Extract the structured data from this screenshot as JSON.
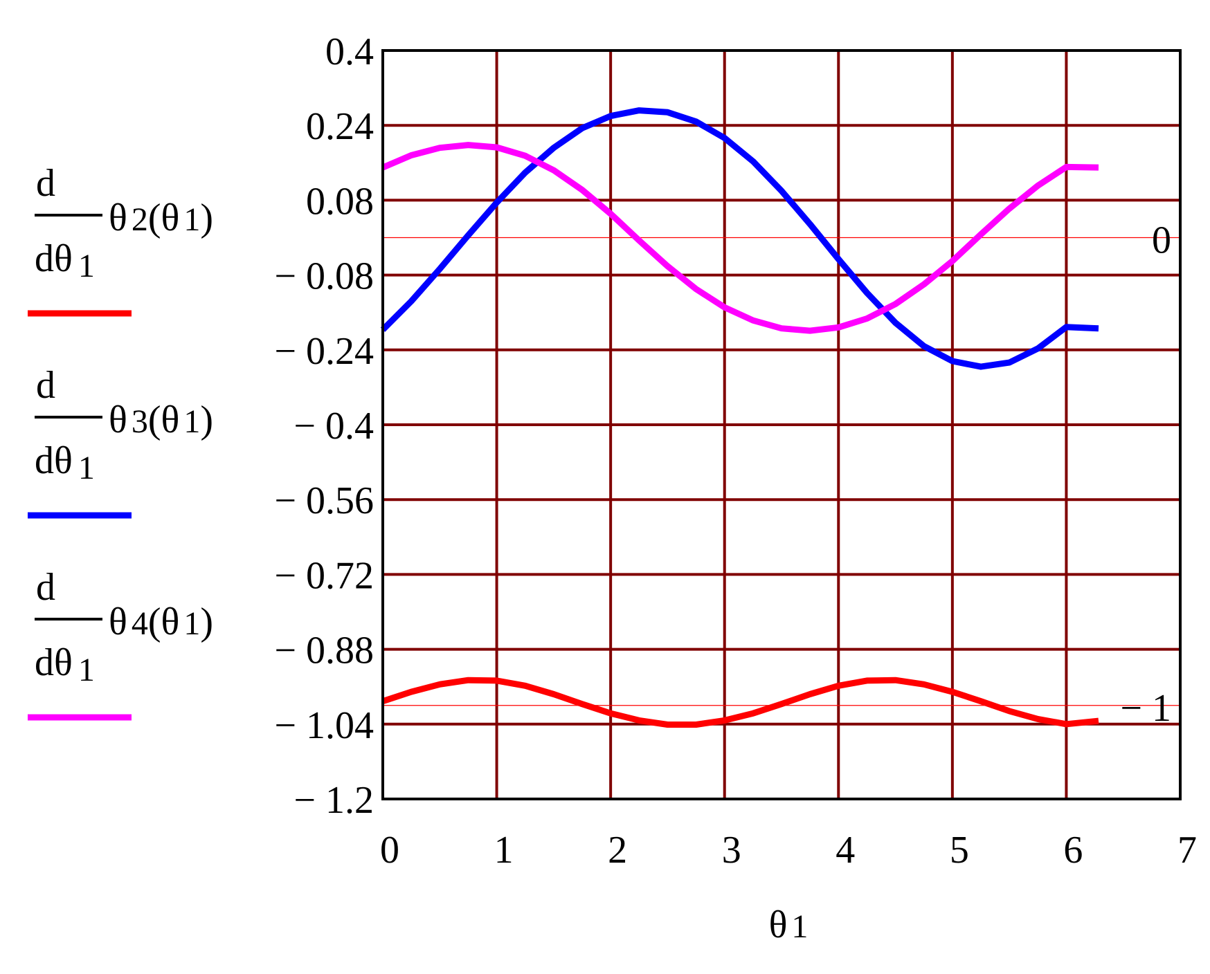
{
  "chart_data": {
    "type": "line",
    "xlabel": {
      "symbol": "θ",
      "sub": "1"
    },
    "xlim": [
      0,
      7
    ],
    "ylim": [
      -1.2,
      0.4
    ],
    "xticks": [
      "0",
      "1",
      "2",
      "3",
      "4",
      "5",
      "6",
      "7"
    ],
    "yticks": [
      "0.4",
      "0.24",
      "0.08",
      "− 0.08",
      "− 0.24",
      "− 0.4",
      "− 0.56",
      "− 0.72",
      "− 0.88",
      "− 1.04",
      "− 1.2"
    ],
    "grid": true,
    "marker_lines": [
      {
        "y": 0,
        "label": "0"
      },
      {
        "y": -1,
        "label": "− 1"
      }
    ],
    "legend": {
      "placement": "left",
      "entries": [
        {
          "num": "d",
          "den": "dθ",
          "den_sub": "1",
          "func": "θ",
          "func_sub": "2",
          "arg": "(θ",
          "arg_sub": "1",
          "close": ")",
          "color": "#ff0000"
        },
        {
          "num": "d",
          "den": "dθ",
          "den_sub": "1",
          "func": "θ",
          "func_sub": "3",
          "arg": "(θ",
          "arg_sub": "1",
          "close": ")",
          "color": "#0000ff"
        },
        {
          "num": "d",
          "den": "dθ",
          "den_sub": "1",
          "func": "θ",
          "func_sub": "4",
          "arg": "(θ",
          "arg_sub": "1",
          "close": ")",
          "color": "#ff00ff"
        }
      ]
    },
    "x": [
      0,
      0.25,
      0.5,
      0.75,
      1.0,
      1.25,
      1.5,
      1.75,
      2.0,
      2.25,
      2.5,
      2.75,
      3.0,
      3.25,
      3.5,
      3.75,
      4.0,
      4.25,
      4.5,
      4.75,
      5.0,
      5.25,
      5.5,
      5.75,
      6.0,
      6.283
    ],
    "series": [
      {
        "color": "#ff0000",
        "values": [
          -0.991,
          -0.971,
          -0.955,
          -0.946,
          -0.947,
          -0.958,
          -0.976,
          -0.997,
          -1.017,
          -1.032,
          -1.041,
          -1.041,
          -1.032,
          -1.017,
          -0.997,
          -0.976,
          -0.958,
          -0.947,
          -0.946,
          -0.955,
          -0.971,
          -0.991,
          -1.012,
          -1.029,
          -1.04,
          -1.033
        ]
      },
      {
        "color": "#0000ff",
        "values": [
          -0.197,
          -0.136,
          -0.067,
          0.005,
          0.075,
          0.139,
          0.192,
          0.234,
          0.26,
          0.272,
          0.268,
          0.248,
          0.213,
          0.163,
          0.1,
          0.029,
          -0.046,
          -0.118,
          -0.182,
          -0.232,
          -0.264,
          -0.276,
          -0.267,
          -0.237,
          -0.191,
          -0.194
        ]
      },
      {
        "color": "#ff00ff",
        "values": [
          0.15,
          0.176,
          0.192,
          0.198,
          0.193,
          0.175,
          0.144,
          0.102,
          0.051,
          -0.006,
          -0.061,
          -0.11,
          -0.149,
          -0.177,
          -0.194,
          -0.199,
          -0.192,
          -0.173,
          -0.142,
          -0.1,
          -0.05,
          0.007,
          0.062,
          0.111,
          0.151,
          0.15
        ]
      }
    ]
  }
}
